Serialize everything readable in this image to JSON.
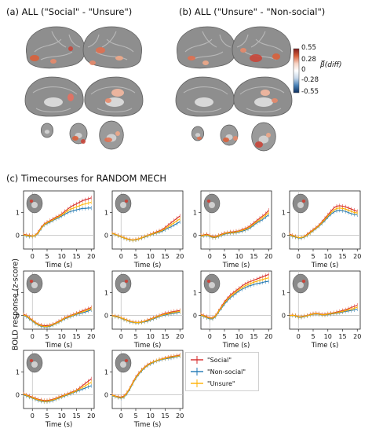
{
  "panels": {
    "a": "(a) ALL (\"Social\" - \"Unsure\")",
    "b": "(b) ALL (\"Unsure\" - \"Non-social\")",
    "c": "(c) Timecourses for RANDOM MECH"
  },
  "colorbar": {
    "ticks": [
      "0.55",
      "0.28",
      "0",
      "-0.28",
      "-0.55"
    ],
    "label": "β̅(diff)",
    "colors": [
      "#7f1d1d",
      "#d9603b",
      "#f6d2c2",
      "#ffffff",
      "#c8d9ea",
      "#4a83b8",
      "#0d2f5e"
    ]
  },
  "timecourses": {
    "ylabel": "BOLD response (z-score)",
    "xlabel": "Time (s)",
    "xticks": [
      "0",
      "5",
      "10",
      "15",
      "20"
    ],
    "ytick_zero": "0",
    "ytick_one": "1",
    "series_colors": {
      "social": "#d62728",
      "nonsocial": "#1f77b4",
      "unsure": "#ffb000"
    },
    "legend": [
      "\"Social\"",
      "\"Non-social\"",
      "\"Unsure\""
    ]
  },
  "chart_data": [
    {
      "type": "line",
      "x": [
        -3,
        -2,
        -1,
        0,
        1,
        2,
        3,
        4,
        5,
        6,
        7,
        8,
        9,
        10,
        11,
        12,
        13,
        14,
        15,
        16,
        17,
        18,
        19,
        20
      ],
      "series": [
        {
          "values": [
            0.05,
            0.02,
            0.0,
            -0.03,
            0.0,
            0.15,
            0.35,
            0.5,
            0.58,
            0.65,
            0.72,
            0.8,
            0.85,
            0.95,
            1.05,
            1.15,
            1.25,
            1.32,
            1.38,
            1.45,
            1.52,
            1.56,
            1.6,
            1.65
          ]
        },
        {
          "values": [
            0.0,
            -0.02,
            -0.05,
            -0.05,
            -0.02,
            0.1,
            0.3,
            0.45,
            0.52,
            0.58,
            0.65,
            0.72,
            0.78,
            0.85,
            0.92,
            1.0,
            1.05,
            1.08,
            1.12,
            1.15,
            1.18,
            1.18,
            1.2,
            1.2
          ]
        },
        {
          "values": [
            0.02,
            0.0,
            -0.02,
            -0.04,
            -0.01,
            0.12,
            0.32,
            0.47,
            0.55,
            0.62,
            0.68,
            0.76,
            0.82,
            0.9,
            0.98,
            1.08,
            1.15,
            1.2,
            1.25,
            1.3,
            1.35,
            1.38,
            1.42,
            1.45
          ]
        }
      ]
    },
    {
      "type": "line",
      "x": [
        -3,
        -2,
        -1,
        0,
        1,
        2,
        3,
        4,
        5,
        6,
        7,
        8,
        9,
        10,
        11,
        12,
        13,
        14,
        15,
        16,
        17,
        18,
        19,
        20
      ],
      "series": [
        {
          "values": [
            0.1,
            0.05,
            0.0,
            -0.05,
            -0.1,
            -0.15,
            -0.18,
            -0.2,
            -0.18,
            -0.15,
            -0.1,
            -0.05,
            0.0,
            0.05,
            0.1,
            0.15,
            0.2,
            0.25,
            0.35,
            0.45,
            0.55,
            0.65,
            0.75,
            0.85
          ]
        },
        {
          "values": [
            0.08,
            0.03,
            -0.02,
            -0.07,
            -0.12,
            -0.17,
            -0.2,
            -0.22,
            -0.2,
            -0.17,
            -0.12,
            -0.08,
            -0.03,
            0.02,
            0.06,
            0.1,
            0.14,
            0.18,
            0.25,
            0.32,
            0.38,
            0.45,
            0.52,
            0.6
          ]
        },
        {
          "values": [
            0.08,
            0.04,
            -0.01,
            -0.06,
            -0.11,
            -0.16,
            -0.19,
            -0.21,
            -0.19,
            -0.16,
            -0.11,
            -0.06,
            -0.01,
            0.03,
            0.08,
            0.12,
            0.17,
            0.22,
            0.3,
            0.38,
            0.46,
            0.55,
            0.64,
            0.72
          ]
        }
      ]
    },
    {
      "type": "line",
      "x": [
        -3,
        -2,
        -1,
        0,
        1,
        2,
        3,
        4,
        5,
        6,
        7,
        8,
        9,
        10,
        11,
        12,
        13,
        14,
        15,
        16,
        17,
        18,
        19,
        20
      ],
      "series": [
        {
          "values": [
            0.0,
            0.02,
            0.05,
            0.0,
            -0.05,
            -0.05,
            0.0,
            0.05,
            0.1,
            0.12,
            0.15,
            0.15,
            0.18,
            0.2,
            0.25,
            0.3,
            0.35,
            0.45,
            0.55,
            0.65,
            0.75,
            0.85,
            0.95,
            1.1
          ]
        },
        {
          "values": [
            -0.05,
            -0.02,
            0.0,
            -0.05,
            -0.1,
            -0.1,
            -0.05,
            0.0,
            0.05,
            0.08,
            0.1,
            0.1,
            0.12,
            0.15,
            0.18,
            0.22,
            0.28,
            0.35,
            0.45,
            0.55,
            0.62,
            0.7,
            0.8,
            0.9
          ]
        },
        {
          "values": [
            -0.02,
            0.0,
            0.02,
            -0.02,
            -0.08,
            -0.08,
            -0.02,
            0.02,
            0.08,
            0.1,
            0.12,
            0.12,
            0.15,
            0.18,
            0.22,
            0.26,
            0.32,
            0.4,
            0.5,
            0.6,
            0.68,
            0.78,
            0.88,
            1.0
          ]
        }
      ]
    },
    {
      "type": "line",
      "x": [
        -3,
        -2,
        -1,
        0,
        1,
        2,
        3,
        4,
        5,
        6,
        7,
        8,
        9,
        10,
        11,
        12,
        13,
        14,
        15,
        16,
        17,
        18,
        19,
        20
      ],
      "series": [
        {
          "values": [
            0.05,
            0.0,
            -0.05,
            -0.1,
            -0.1,
            -0.05,
            0.05,
            0.15,
            0.25,
            0.35,
            0.45,
            0.6,
            0.75,
            0.9,
            1.05,
            1.2,
            1.28,
            1.3,
            1.28,
            1.25,
            1.2,
            1.15,
            1.1,
            1.05
          ]
        },
        {
          "values": [
            0.0,
            -0.05,
            -0.08,
            -0.12,
            -0.12,
            -0.08,
            0.0,
            0.1,
            0.2,
            0.3,
            0.4,
            0.52,
            0.65,
            0.8,
            0.92,
            1.02,
            1.08,
            1.1,
            1.08,
            1.05,
            1.0,
            0.95,
            0.92,
            0.9
          ]
        },
        {
          "values": [
            0.02,
            -0.02,
            -0.06,
            -0.1,
            -0.1,
            -0.06,
            0.02,
            0.12,
            0.22,
            0.32,
            0.42,
            0.56,
            0.7,
            0.85,
            0.98,
            1.1,
            1.18,
            1.2,
            1.18,
            1.15,
            1.1,
            1.05,
            1.0,
            0.98
          ]
        }
      ]
    },
    {
      "type": "line",
      "x": [
        -3,
        -2,
        -1,
        0,
        1,
        2,
        3,
        4,
        5,
        6,
        7,
        8,
        9,
        10,
        11,
        12,
        13,
        14,
        15,
        16,
        17,
        18,
        19,
        20
      ],
      "series": [
        {
          "values": [
            0.05,
            0.0,
            -0.1,
            -0.2,
            -0.3,
            -0.38,
            -0.42,
            -0.45,
            -0.45,
            -0.42,
            -0.38,
            -0.32,
            -0.25,
            -0.18,
            -0.1,
            -0.05,
            0.0,
            0.05,
            0.1,
            0.15,
            0.2,
            0.25,
            0.3,
            0.35
          ]
        },
        {
          "values": [
            0.0,
            -0.05,
            -0.15,
            -0.25,
            -0.35,
            -0.42,
            -0.48,
            -0.5,
            -0.5,
            -0.48,
            -0.42,
            -0.36,
            -0.3,
            -0.22,
            -0.15,
            -0.1,
            -0.05,
            0.0,
            0.05,
            0.08,
            0.12,
            0.15,
            0.2,
            0.25
          ]
        },
        {
          "values": [
            0.02,
            -0.02,
            -0.12,
            -0.22,
            -0.32,
            -0.4,
            -0.45,
            -0.48,
            -0.48,
            -0.45,
            -0.4,
            -0.34,
            -0.28,
            -0.2,
            -0.12,
            -0.08,
            -0.02,
            0.02,
            0.08,
            0.12,
            0.16,
            0.2,
            0.25,
            0.3
          ]
        }
      ]
    },
    {
      "type": "line",
      "x": [
        -3,
        -2,
        -1,
        0,
        1,
        2,
        3,
        4,
        5,
        6,
        7,
        8,
        9,
        10,
        11,
        12,
        13,
        14,
        15,
        16,
        17,
        18,
        19,
        20
      ],
      "series": [
        {
          "values": [
            0.0,
            -0.02,
            -0.05,
            -0.1,
            -0.15,
            -0.2,
            -0.25,
            -0.28,
            -0.3,
            -0.3,
            -0.28,
            -0.25,
            -0.2,
            -0.15,
            -0.1,
            -0.05,
            0.0,
            0.05,
            0.1,
            0.12,
            0.15,
            0.18,
            0.2,
            0.22
          ]
        },
        {
          "values": [
            -0.02,
            -0.05,
            -0.08,
            -0.12,
            -0.18,
            -0.22,
            -0.28,
            -0.3,
            -0.32,
            -0.32,
            -0.3,
            -0.28,
            -0.25,
            -0.2,
            -0.15,
            -0.1,
            -0.05,
            0.0,
            0.02,
            0.05,
            0.08,
            0.1,
            0.12,
            0.15
          ]
        },
        {
          "values": [
            -0.01,
            -0.03,
            -0.06,
            -0.11,
            -0.16,
            -0.21,
            -0.26,
            -0.29,
            -0.31,
            -0.31,
            -0.29,
            -0.26,
            -0.22,
            -0.17,
            -0.12,
            -0.07,
            -0.02,
            0.02,
            0.06,
            0.08,
            0.12,
            0.14,
            0.16,
            0.18
          ]
        }
      ]
    },
    {
      "type": "line",
      "x": [
        -3,
        -2,
        -1,
        0,
        1,
        2,
        3,
        4,
        5,
        6,
        7,
        8,
        9,
        10,
        11,
        12,
        13,
        14,
        15,
        16,
        17,
        18,
        19,
        20
      ],
      "series": [
        {
          "values": [
            0.05,
            0.0,
            -0.05,
            -0.1,
            -0.1,
            0.0,
            0.2,
            0.4,
            0.6,
            0.75,
            0.9,
            1.0,
            1.1,
            1.2,
            1.3,
            1.38,
            1.45,
            1.5,
            1.55,
            1.6,
            1.65,
            1.7,
            1.75,
            1.8
          ]
        },
        {
          "values": [
            0.0,
            -0.05,
            -0.1,
            -0.15,
            -0.15,
            -0.05,
            0.15,
            0.32,
            0.5,
            0.65,
            0.78,
            0.88,
            0.98,
            1.08,
            1.15,
            1.22,
            1.28,
            1.32,
            1.36,
            1.4,
            1.42,
            1.45,
            1.48,
            1.5
          ]
        },
        {
          "values": [
            0.02,
            -0.02,
            -0.08,
            -0.12,
            -0.12,
            -0.02,
            0.18,
            0.36,
            0.55,
            0.7,
            0.84,
            0.94,
            1.04,
            1.14,
            1.22,
            1.3,
            1.36,
            1.41,
            1.46,
            1.5,
            1.54,
            1.58,
            1.62,
            1.65
          ]
        }
      ]
    },
    {
      "type": "line",
      "x": [
        -3,
        -2,
        -1,
        0,
        1,
        2,
        3,
        4,
        5,
        6,
        7,
        8,
        9,
        10,
        11,
        12,
        13,
        14,
        15,
        16,
        17,
        18,
        19,
        20
      ],
      "series": [
        {
          "values": [
            0.0,
            0.02,
            0.0,
            -0.05,
            -0.05,
            -0.02,
            0.0,
            0.05,
            0.08,
            0.1,
            0.08,
            0.05,
            0.05,
            0.08,
            0.1,
            0.12,
            0.15,
            0.18,
            0.22,
            0.25,
            0.3,
            0.35,
            0.4,
            0.45
          ]
        },
        {
          "values": [
            -0.02,
            0.0,
            -0.02,
            -0.08,
            -0.08,
            -0.05,
            -0.02,
            0.02,
            0.05,
            0.06,
            0.05,
            0.02,
            0.02,
            0.04,
            0.06,
            0.08,
            0.1,
            0.12,
            0.15,
            0.18,
            0.2,
            0.22,
            0.25,
            0.28
          ]
        },
        {
          "values": [
            -0.01,
            0.01,
            -0.01,
            -0.06,
            -0.06,
            -0.03,
            -0.01,
            0.03,
            0.06,
            0.08,
            0.06,
            0.03,
            0.03,
            0.06,
            0.08,
            0.1,
            0.12,
            0.15,
            0.18,
            0.21,
            0.25,
            0.28,
            0.32,
            0.36
          ]
        }
      ]
    },
    {
      "type": "line",
      "x": [
        -3,
        -2,
        -1,
        0,
        1,
        2,
        3,
        4,
        5,
        6,
        7,
        8,
        9,
        10,
        11,
        12,
        13,
        14,
        15,
        16,
        17,
        18,
        19,
        20
      ],
      "series": [
        {
          "values": [
            0.05,
            0.0,
            -0.05,
            -0.1,
            -0.15,
            -0.2,
            -0.22,
            -0.25,
            -0.25,
            -0.22,
            -0.2,
            -0.15,
            -0.1,
            -0.05,
            0.0,
            0.05,
            0.1,
            0.15,
            0.2,
            0.3,
            0.4,
            0.5,
            0.6,
            0.7
          ]
        },
        {
          "values": [
            0.0,
            -0.05,
            -0.1,
            -0.15,
            -0.2,
            -0.25,
            -0.28,
            -0.3,
            -0.3,
            -0.28,
            -0.25,
            -0.2,
            -0.15,
            -0.1,
            -0.05,
            0.0,
            0.05,
            0.1,
            0.15,
            0.2,
            0.25,
            0.3,
            0.35,
            0.4
          ]
        },
        {
          "values": [
            0.02,
            -0.02,
            -0.08,
            -0.12,
            -0.18,
            -0.22,
            -0.25,
            -0.28,
            -0.28,
            -0.25,
            -0.22,
            -0.18,
            -0.12,
            -0.08,
            -0.02,
            0.02,
            0.08,
            0.12,
            0.18,
            0.25,
            0.32,
            0.4,
            0.48,
            0.55
          ]
        }
      ]
    },
    {
      "type": "line",
      "x": [
        -3,
        -2,
        -1,
        0,
        1,
        2,
        3,
        4,
        5,
        6,
        7,
        8,
        9,
        10,
        11,
        12,
        13,
        14,
        15,
        16,
        17,
        18,
        19,
        20
      ],
      "series": [
        {
          "values": [
            0.0,
            -0.05,
            -0.08,
            -0.1,
            -0.05,
            0.1,
            0.3,
            0.55,
            0.78,
            0.95,
            1.1,
            1.22,
            1.32,
            1.4,
            1.45,
            1.5,
            1.55,
            1.58,
            1.62,
            1.65,
            1.68,
            1.7,
            1.72,
            1.75
          ]
        },
        {
          "values": [
            -0.05,
            -0.08,
            -0.12,
            -0.15,
            -0.1,
            0.05,
            0.25,
            0.5,
            0.72,
            0.9,
            1.05,
            1.18,
            1.28,
            1.35,
            1.42,
            1.48,
            1.52,
            1.55,
            1.58,
            1.6,
            1.62,
            1.65,
            1.68,
            1.7
          ]
        },
        {
          "values": [
            -0.02,
            -0.06,
            -0.1,
            -0.12,
            -0.08,
            0.08,
            0.28,
            0.52,
            0.75,
            0.92,
            1.08,
            1.2,
            1.3,
            1.38,
            1.44,
            1.5,
            1.54,
            1.57,
            1.6,
            1.63,
            1.66,
            1.68,
            1.7,
            1.72
          ]
        }
      ]
    }
  ]
}
